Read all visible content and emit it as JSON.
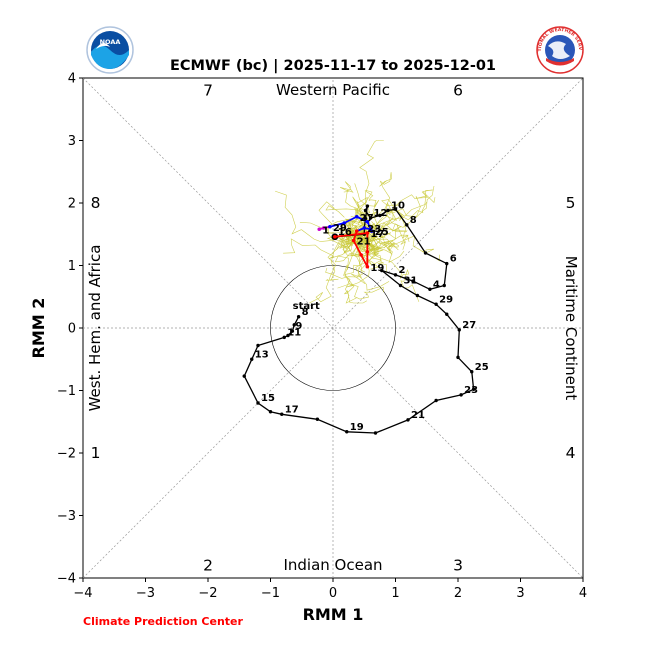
{
  "colors": {
    "observed": "#000000",
    "ensemble": "#c8c832",
    "mean_week1": "#ff0000",
    "mean_week2": "#0000ff",
    "mean_week3": "#cc00cc",
    "credit": "#ff0000"
  },
  "logos": {
    "left": "noaa-logo",
    "right": "nws-logo",
    "left_text": "NOAA",
    "right_text": "NATIONAL WEATHER SERVICE"
  },
  "chart_data": {
    "type": "line",
    "title": "ECMWF (bc) | 2025-11-17 to 2025-12-01",
    "xlabel": "RMM 1",
    "ylabel": "RMM 2",
    "xlim": [
      -4,
      4
    ],
    "ylim": [
      -4,
      4
    ],
    "xticks": [
      "−4",
      "−3",
      "−2",
      "−1",
      "0",
      "1",
      "2",
      "3",
      "4"
    ],
    "yticks": [
      "−4",
      "−3",
      "−2",
      "−1",
      "0",
      "1",
      "2",
      "3",
      "4"
    ],
    "grid": false,
    "unit_circle_radius": 1,
    "regions": {
      "top": "Western Pacific",
      "bottom": "Indian Ocean",
      "left": "West. Hem. and Africa",
      "right": "Maritime Continent"
    },
    "phases": [
      {
        "label": "1",
        "x": -3.8,
        "y": -2
      },
      {
        "label": "2",
        "x": -2,
        "y": -3.8
      },
      {
        "label": "3",
        "x": 2,
        "y": -3.8
      },
      {
        "label": "4",
        "x": 3.8,
        "y": -2
      },
      {
        "label": "5",
        "x": 3.8,
        "y": 2
      },
      {
        "label": "6",
        "x": 2,
        "y": 3.8
      },
      {
        "label": "7",
        "x": -2,
        "y": 3.8
      },
      {
        "label": "8",
        "x": -3.8,
        "y": 2
      }
    ],
    "start_label": "start",
    "observed": {
      "name": "",
      "points": [
        {
          "x": -0.55,
          "y": 0.18,
          "label": "8"
        },
        {
          "x": -0.62,
          "y": 0.05
        },
        {
          "x": -0.65,
          "y": -0.05,
          "label": "9"
        },
        {
          "x": -0.72,
          "y": -0.12
        },
        {
          "x": -0.78,
          "y": -0.15,
          "label": "11"
        },
        {
          "x": -1.2,
          "y": -0.28
        },
        {
          "x": -1.3,
          "y": -0.5,
          "label": "13"
        },
        {
          "x": -1.42,
          "y": -0.77
        },
        {
          "x": -1.2,
          "y": -1.2,
          "label": "15"
        },
        {
          "x": -1.0,
          "y": -1.34
        },
        {
          "x": -0.82,
          "y": -1.38,
          "label": "17"
        },
        {
          "x": -0.25,
          "y": -1.46
        },
        {
          "x": 0.22,
          "y": -1.66,
          "label": "19"
        },
        {
          "x": 0.68,
          "y": -1.68
        },
        {
          "x": 1.2,
          "y": -1.47,
          "label": "21"
        },
        {
          "x": 1.65,
          "y": -1.16
        },
        {
          "x": 2.05,
          "y": -1.07,
          "label": "23"
        },
        {
          "x": 2.25,
          "y": -0.98
        },
        {
          "x": 2.22,
          "y": -0.7,
          "label": "25"
        },
        {
          "x": 2.0,
          "y": -0.47
        },
        {
          "x": 2.02,
          "y": -0.03,
          "label": "27"
        },
        {
          "x": 1.82,
          "y": 0.22
        },
        {
          "x": 1.65,
          "y": 0.38,
          "label": "29"
        },
        {
          "x": 1.35,
          "y": 0.52
        },
        {
          "x": 1.08,
          "y": 0.68,
          "label": "31"
        },
        {
          "x": 0.78,
          "y": 0.92
        },
        {
          "x": 1.0,
          "y": 0.85,
          "label": "2"
        },
        {
          "x": 1.28,
          "y": 0.75
        },
        {
          "x": 1.55,
          "y": 0.62,
          "label": "4"
        },
        {
          "x": 1.78,
          "y": 0.68
        },
        {
          "x": 1.82,
          "y": 1.03,
          "label": "6"
        },
        {
          "x": 1.48,
          "y": 1.2
        },
        {
          "x": 1.18,
          "y": 1.65,
          "label": "8"
        },
        {
          "x": 1.0,
          "y": 1.9
        },
        {
          "x": 0.88,
          "y": 1.88,
          "label": "10"
        },
        {
          "x": 0.75,
          "y": 1.8
        },
        {
          "x": 0.6,
          "y": 1.76,
          "label": "12"
        },
        {
          "x": 0.52,
          "y": 1.88
        },
        {
          "x": 0.55,
          "y": 1.95
        },
        {
          "x": 0.52,
          "y": 1.75
        },
        {
          "x": 0.5,
          "y": 1.6
        },
        {
          "x": 0.5,
          "y": 1.5
        },
        {
          "x": 0.03,
          "y": 1.46,
          "label": "16"
        }
      ]
    },
    "forecast_mean": {
      "name": "",
      "points": [
        {
          "x": 0.03,
          "y": 1.46,
          "label": "16",
          "color": "#ff0000"
        },
        {
          "x": 0.55,
          "y": 1.52,
          "label": "17",
          "color": "#ff0000"
        },
        {
          "x": 0.55,
          "y": 1.22,
          "color": "#ff0000"
        },
        {
          "x": 0.55,
          "y": 0.98,
          "label": "19",
          "color": "#ff0000"
        },
        {
          "x": 0.45,
          "y": 1.17,
          "color": "#ff0000"
        },
        {
          "x": 0.33,
          "y": 1.4,
          "label": "21",
          "color": "#ff0000"
        },
        {
          "x": 0.38,
          "y": 1.55,
          "color": "#ff0000"
        },
        {
          "x": 0.5,
          "y": 1.6,
          "label": "23",
          "color": "#0000ff"
        },
        {
          "x": 0.6,
          "y": 1.58,
          "color": "#0000ff"
        },
        {
          "x": 0.62,
          "y": 1.55,
          "label": "25",
          "color": "#0000ff"
        },
        {
          "x": 0.55,
          "y": 1.7,
          "color": "#0000ff"
        },
        {
          "x": 0.38,
          "y": 1.78,
          "label": "27",
          "color": "#0000ff"
        },
        {
          "x": 0.18,
          "y": 1.68,
          "color": "#0000ff"
        },
        {
          "x": -0.05,
          "y": 1.62,
          "label": "29",
          "color": "#0000ff"
        },
        {
          "x": -0.15,
          "y": 1.6,
          "color": "#cc00cc"
        },
        {
          "x": -0.22,
          "y": 1.58,
          "label": "1",
          "color": "#cc00cc"
        }
      ]
    }
  },
  "footer": {
    "credit": "Climate Prediction Center"
  }
}
